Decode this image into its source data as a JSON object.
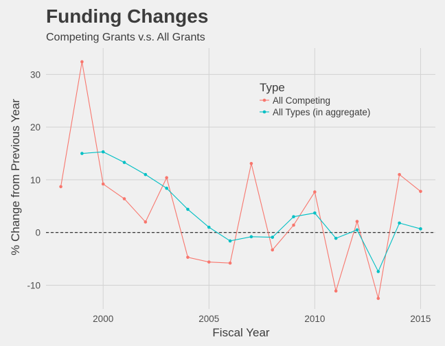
{
  "chart_data": {
    "type": "line",
    "title": "Funding Changes",
    "subtitle": "Competing Grants v.s. All Grants",
    "xlabel": "Fiscal Year",
    "ylabel": "% Change from Previous Year",
    "xlim": [
      1997.3,
      2015.7
    ],
    "ylim": [
      -14.5,
      35
    ],
    "xticks": [
      2000,
      2005,
      2010,
      2015
    ],
    "yticks": [
      -10,
      0,
      10,
      20,
      30
    ],
    "grid": true,
    "reference_line": {
      "y": 0,
      "style": "dashed"
    },
    "legend": {
      "title": "Type",
      "placement": "top-right"
    },
    "series": [
      {
        "name": "All Competing",
        "color": "#f8766d",
        "x": [
          1998,
          1999,
          2000,
          2001,
          2002,
          2003,
          2004,
          2005,
          2006,
          2007,
          2008,
          2009,
          2010,
          2011,
          2012,
          2013,
          2014,
          2015
        ],
        "y": [
          8.7,
          32.4,
          9.2,
          6.4,
          2.0,
          10.4,
          -4.7,
          -5.6,
          -5.8,
          13.1,
          -3.3,
          1.4,
          7.7,
          -11.1,
          2.1,
          -12.5,
          11.0,
          7.8
        ]
      },
      {
        "name": "All Types (in aggregate)",
        "color": "#00bfc4",
        "x": [
          1999,
          2000,
          2001,
          2002,
          2003,
          2004,
          2005,
          2006,
          2007,
          2008,
          2009,
          2010,
          2011,
          2012,
          2013,
          2014,
          2015
        ],
        "y": [
          15.0,
          15.3,
          13.3,
          11.0,
          8.4,
          4.4,
          1.0,
          -1.6,
          -0.8,
          -0.9,
          3.0,
          3.7,
          -1.1,
          0.5,
          -7.4,
          1.8,
          0.7
        ]
      }
    ]
  }
}
